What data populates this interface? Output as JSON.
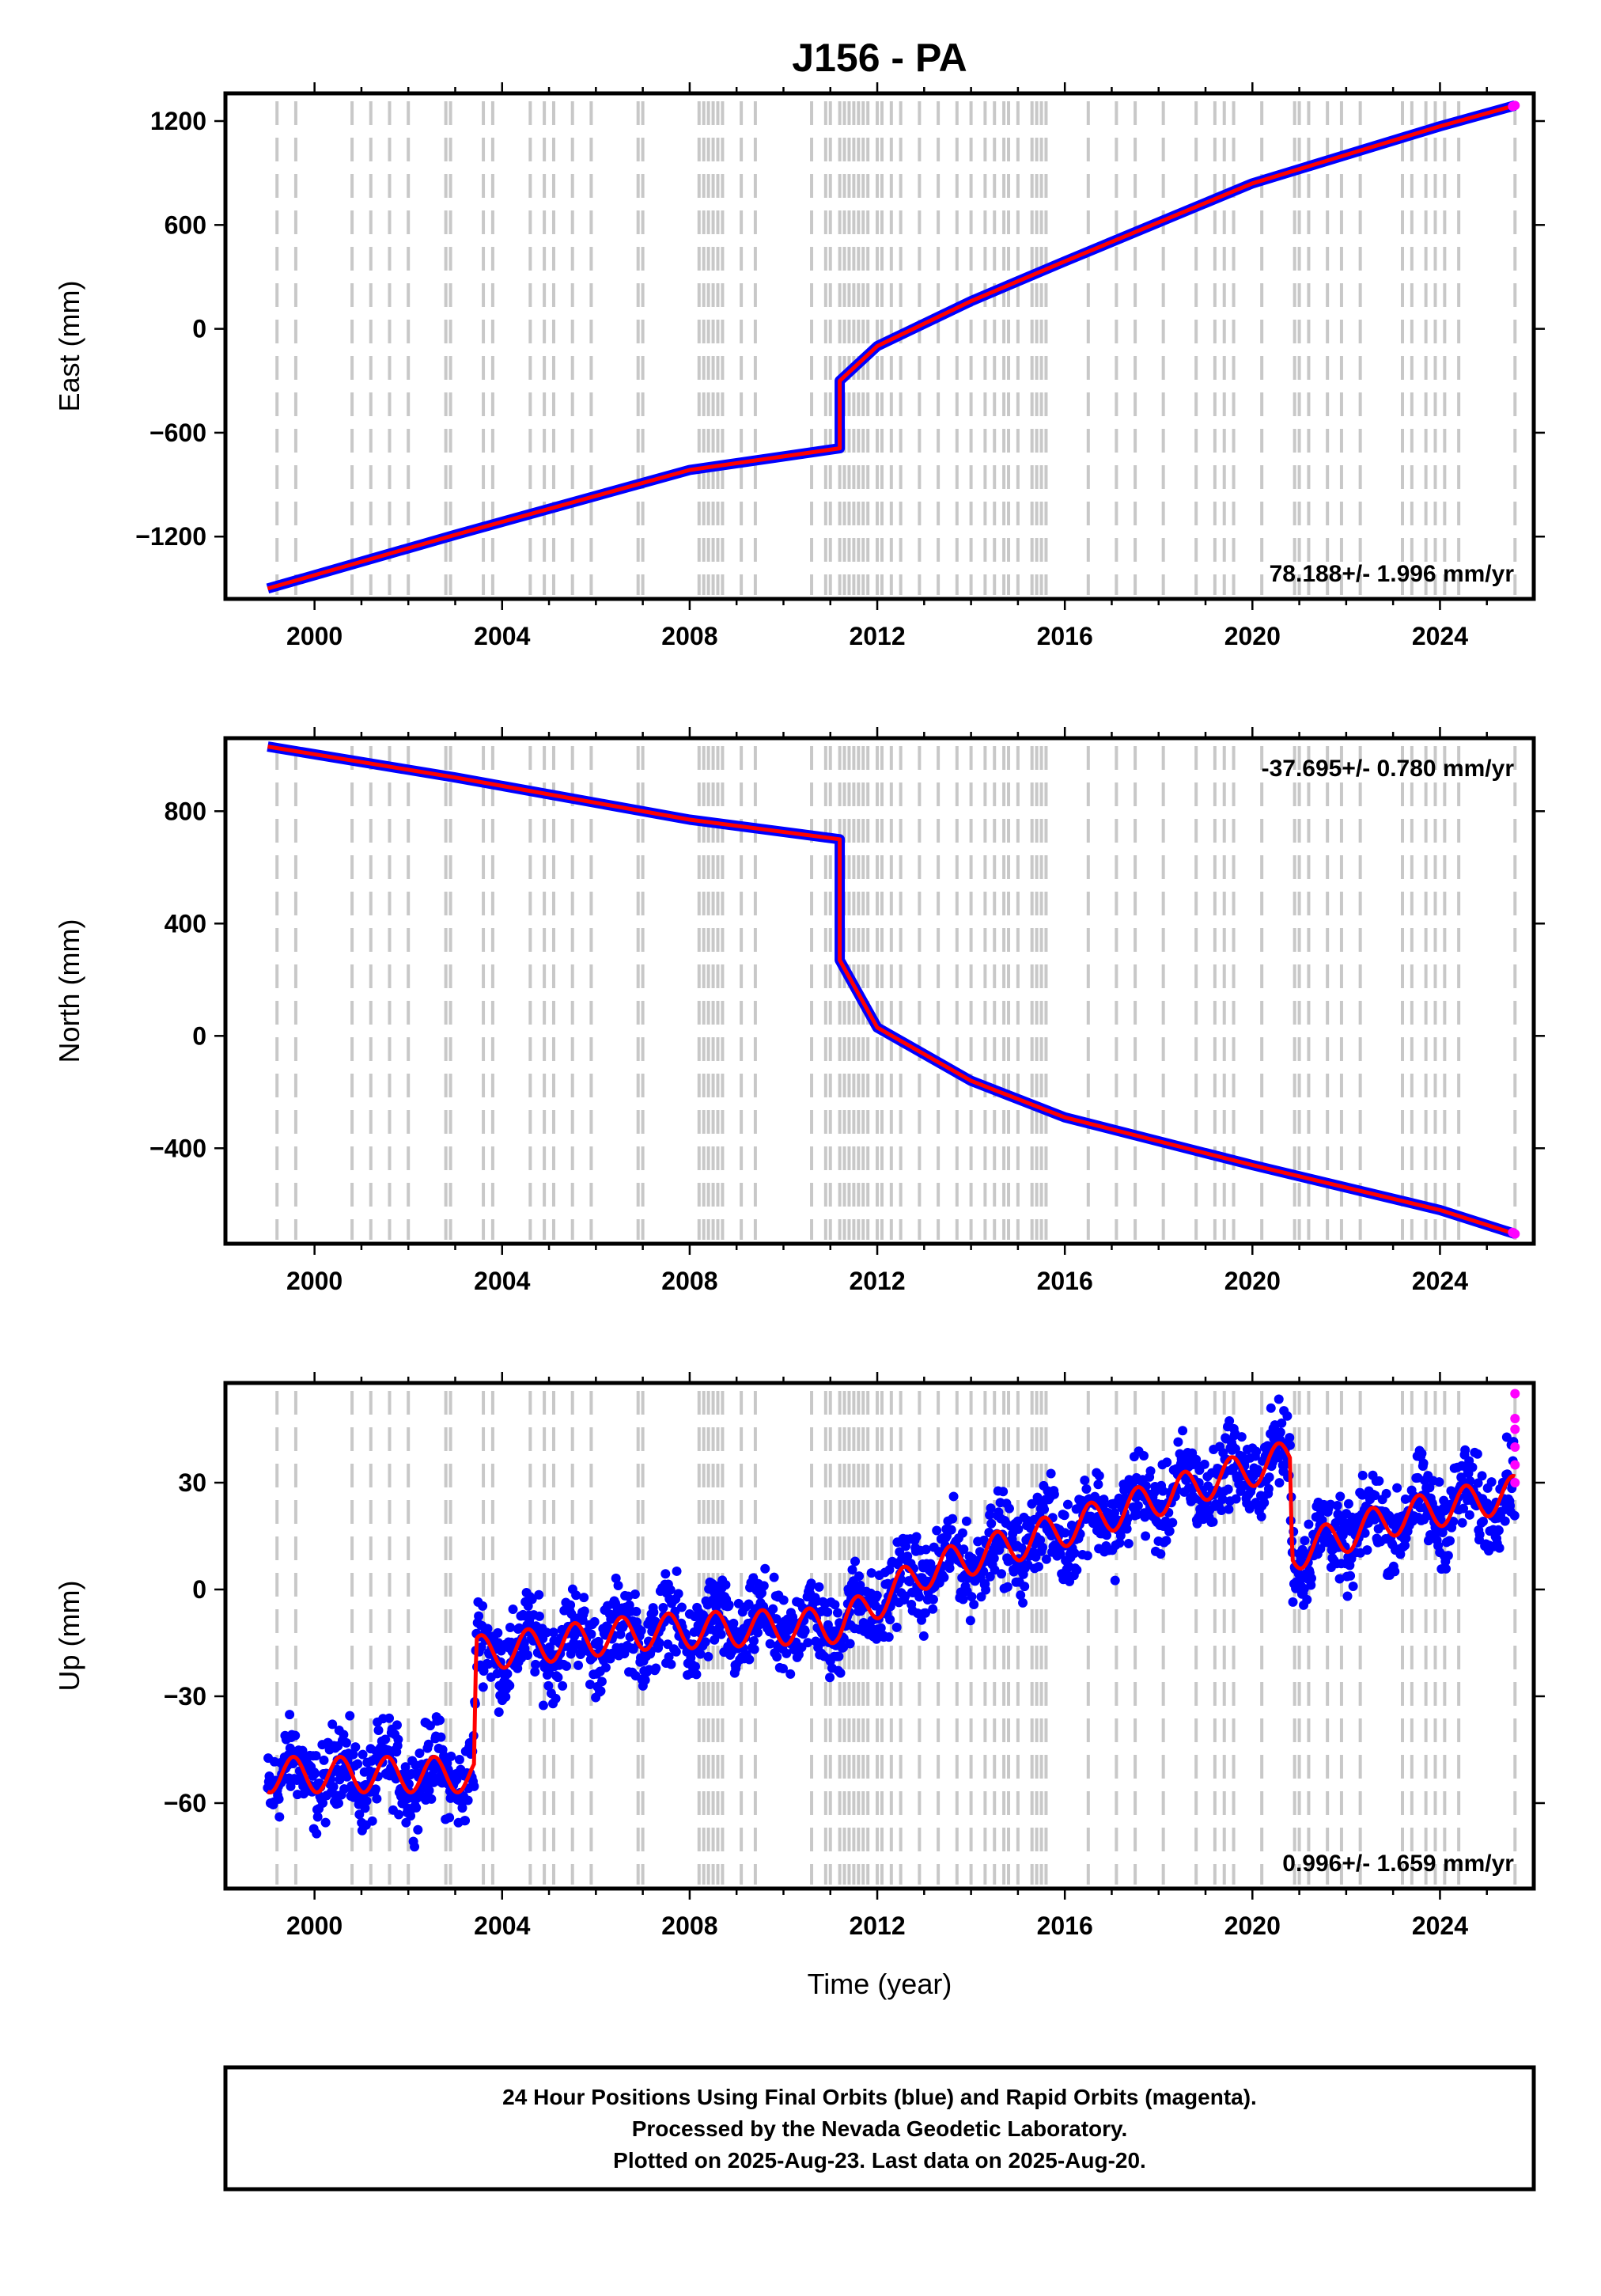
{
  "title": "J156 - PA",
  "xlabel": "Time (year)",
  "caption": {
    "line1": "24 Hour Positions Using Final Orbits (blue) and Rapid Orbits (magenta).",
    "line2": "Processed by the Nevada Geodetic Laboratory.",
    "line3": "Plotted on 2025-Aug-23. Last data on 2025-Aug-20."
  },
  "colors": {
    "final": "#0000ff",
    "rapid": "#ff00ff",
    "model": "#ff0000",
    "equipment_change": "#c8c8c8"
  },
  "chart_data": [
    {
      "type": "scatter",
      "panel": "east",
      "ylabel": "East (mm)",
      "rate_label": "78.188+/- 1.996 mm/yr",
      "rate_position": "bottom-right",
      "xlim": [
        1998.1,
        2026.0
      ],
      "ylim": [
        -1560,
        1360
      ],
      "xticks": [
        2000,
        2004,
        2008,
        2012,
        2016,
        2020,
        2024
      ],
      "xtick_labels": [
        "2000",
        "2004",
        "2008",
        "2012",
        "2016",
        "2020",
        "2024"
      ],
      "yticks": [
        -1200,
        -600,
        0,
        600,
        1200
      ],
      "ytick_labels": [
        "−1200",
        "−600",
        "0",
        "600",
        "1200"
      ],
      "series": [
        {
          "kind": "final",
          "x": [
            1999.0,
            2003.0,
            2008.0,
            2011.2,
            2011.2,
            2012.0,
            2014.0,
            2016.0,
            2020.0,
            2024.0,
            2025.6
          ],
          "y": [
            -1500,
            -1190,
            -815,
            -690,
            -300,
            -100,
            160,
            390,
            840,
            1170,
            1290
          ]
        },
        {
          "kind": "model",
          "x": [
            1999.0,
            2003.0,
            2008.0,
            2011.2,
            2011.2,
            2012.0,
            2014.0,
            2016.0,
            2020.0,
            2024.0,
            2025.6
          ],
          "y": [
            -1500,
            -1190,
            -815,
            -690,
            -300,
            -100,
            160,
            390,
            840,
            1170,
            1290
          ]
        },
        {
          "kind": "rapid",
          "x": [
            2025.55,
            2025.6
          ],
          "y": [
            1285,
            1290
          ]
        }
      ]
    },
    {
      "type": "scatter",
      "panel": "north",
      "ylabel": "North (mm)",
      "rate_label": "-37.695+/- 0.780 mm/yr",
      "rate_position": "top-right",
      "xlim": [
        1998.1,
        2026.0
      ],
      "ylim": [
        -740,
        1060
      ],
      "xticks": [
        2000,
        2004,
        2008,
        2012,
        2016,
        2020,
        2024
      ],
      "xtick_labels": [
        "2000",
        "2004",
        "2008",
        "2012",
        "2016",
        "2020",
        "2024"
      ],
      "yticks": [
        -400,
        0,
        400,
        800
      ],
      "ytick_labels": [
        "−400",
        "0",
        "400",
        "800"
      ],
      "series": [
        {
          "kind": "final",
          "x": [
            1999.0,
            2003.0,
            2008.0,
            2011.2,
            2011.2,
            2012.0,
            2014.0,
            2016.0,
            2020.0,
            2024.0,
            2025.6
          ],
          "y": [
            1030,
            920,
            770,
            700,
            270,
            30,
            -160,
            -290,
            -460,
            -620,
            -705
          ]
        },
        {
          "kind": "model",
          "x": [
            1999.0,
            2003.0,
            2008.0,
            2011.2,
            2011.2,
            2012.0,
            2014.0,
            2016.0,
            2020.0,
            2024.0,
            2025.6
          ],
          "y": [
            1030,
            920,
            770,
            700,
            270,
            30,
            -160,
            -290,
            -460,
            -620,
            -705
          ]
        },
        {
          "kind": "rapid",
          "x": [
            2025.55,
            2025.6
          ],
          "y": [
            -700,
            -705
          ]
        }
      ]
    },
    {
      "type": "scatter",
      "panel": "up",
      "ylabel": "Up (mm)",
      "rate_label": "0.996+/- 1.659 mm/yr",
      "rate_position": "bottom-right",
      "xlim": [
        1998.1,
        2026.0
      ],
      "ylim": [
        -84,
        58
      ],
      "xticks": [
        2000,
        2004,
        2008,
        2012,
        2016,
        2020,
        2024
      ],
      "xtick_labels": [
        "2000",
        "2004",
        "2008",
        "2012",
        "2016",
        "2020",
        "2024"
      ],
      "yticks": [
        -60,
        -30,
        0,
        30
      ],
      "ytick_labels": [
        "−60",
        "−30",
        "0",
        "30"
      ],
      "seasonal_amplitude_mm": 5,
      "scatter_spread_mm": 8,
      "series": [
        {
          "kind": "model",
          "x": [
            1999.0,
            2003.4,
            2003.45,
            2007.0,
            2011.2,
            2013.0,
            2016.0,
            2019.0,
            2020.8,
            2020.85,
            2023.0,
            2025.6
          ],
          "y": [
            -52,
            -52,
            -18,
            -12,
            -10,
            5,
            17,
            30,
            37,
            10,
            20,
            27
          ]
        },
        {
          "kind": "rapid",
          "x": [
            2025.6,
            2025.6,
            2025.6,
            2025.6,
            2025.6,
            2025.6
          ],
          "y": [
            55,
            48,
            45,
            40,
            35,
            30
          ]
        }
      ]
    }
  ],
  "equipment_changes": [
    1999.2,
    1999.6,
    2000.8,
    2001.2,
    2001.6,
    2002.0,
    2002.8,
    2002.9,
    2003.6,
    2003.8,
    2004.6,
    2004.9,
    2005.1,
    2005.5,
    2005.9,
    2006.9,
    2007.0,
    2008.2,
    2008.3,
    2008.4,
    2008.5,
    2008.6,
    2008.7,
    2009.1,
    2009.4,
    2010.6,
    2010.9,
    2011.0,
    2011.2,
    2011.3,
    2011.4,
    2011.5,
    2011.6,
    2011.7,
    2011.8,
    2012.0,
    2012.1,
    2012.3,
    2012.5,
    2012.9,
    2013.3,
    2013.7,
    2014.0,
    2014.3,
    2014.5,
    2014.7,
    2014.8,
    2015.0,
    2015.3,
    2015.4,
    2015.5,
    2015.6,
    2016.5,
    2017.1,
    2017.5,
    2018.1,
    2018.8,
    2019.2,
    2019.4,
    2019.6,
    2020.2,
    2020.9,
    2021.0,
    2021.2,
    2021.6,
    2021.9,
    2022.3,
    2023.2,
    2023.4,
    2023.7,
    2023.9,
    2024.1,
    2024.4,
    2025.6
  ]
}
